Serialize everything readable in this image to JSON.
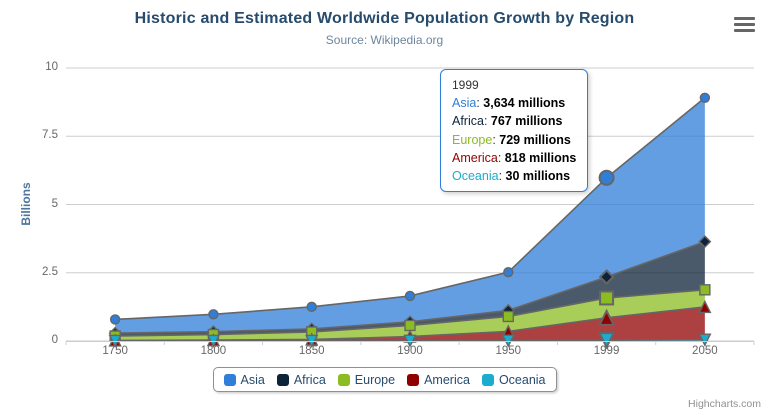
{
  "header": {
    "title": "Historic and Estimated Worldwide Population Growth by Region",
    "subtitle": "Source: Wikipedia.org"
  },
  "chart_data": {
    "type": "area",
    "stacking": "normal",
    "categories": [
      "1750",
      "1800",
      "1850",
      "1900",
      "1950",
      "1999",
      "2050"
    ],
    "series": [
      {
        "name": "Asia",
        "color": "#2f7ed8",
        "marker": "circle",
        "values": [
          502,
          635,
          809,
          947,
          1402,
          3634,
          5268
        ]
      },
      {
        "name": "Africa",
        "color": "#0d233a",
        "marker": "diamond",
        "values": [
          106,
          107,
          111,
          133,
          221,
          767,
          1766
        ]
      },
      {
        "name": "Europe",
        "color": "#8bbc21",
        "marker": "square",
        "values": [
          163,
          203,
          276,
          408,
          547,
          729,
          628
        ]
      },
      {
        "name": "America",
        "color": "#910000",
        "marker": "triangle",
        "values": [
          18,
          31,
          54,
          156,
          339,
          818,
          1201
        ]
      },
      {
        "name": "Oceania",
        "color": "#1aadce",
        "marker": "triangle-down",
        "values": [
          2,
          2,
          2,
          6,
          13,
          30,
          46
        ]
      }
    ],
    "values_unit": "millions",
    "ylabel": "Billions",
    "yticks": [
      0,
      2.5,
      5,
      7.5,
      10
    ],
    "ytick_labels": [
      "0",
      "2.5",
      "5",
      "7.5",
      "10"
    ],
    "ylim": [
      0,
      10
    ],
    "grid": true,
    "line_color": "#666666",
    "fill_opacity": 0.75,
    "axis_line_color": "#c0d0e0",
    "grid_color": "#cdcdcd",
    "hover_category": "1999",
    "legend_position": "bottom"
  },
  "tooltip": {
    "header": "1999",
    "separator": ": ",
    "rows": [
      {
        "label": "Asia",
        "color": "#2f7ed8",
        "value": 3634,
        "value_text": "3,634 millions"
      },
      {
        "label": "Africa",
        "color": "#0d233a",
        "value": 767,
        "value_text": "767 millions"
      },
      {
        "label": "Europe",
        "color": "#8bbc21",
        "value": 729,
        "value_text": "729 millions"
      },
      {
        "label": "America",
        "color": "#910000",
        "value": 818,
        "value_text": "818 millions"
      },
      {
        "label": "Oceania",
        "color": "#1aadce",
        "value": 30,
        "value_text": "30 millions"
      }
    ]
  },
  "legend": {
    "items": [
      {
        "label": "Asia",
        "color": "#2f7ed8"
      },
      {
        "label": "Africa",
        "color": "#0d233a"
      },
      {
        "label": "Europe",
        "color": "#8bbc21"
      },
      {
        "label": "America",
        "color": "#910000"
      },
      {
        "label": "Oceania",
        "color": "#1aadce"
      }
    ]
  },
  "credits": "Highcharts.com"
}
